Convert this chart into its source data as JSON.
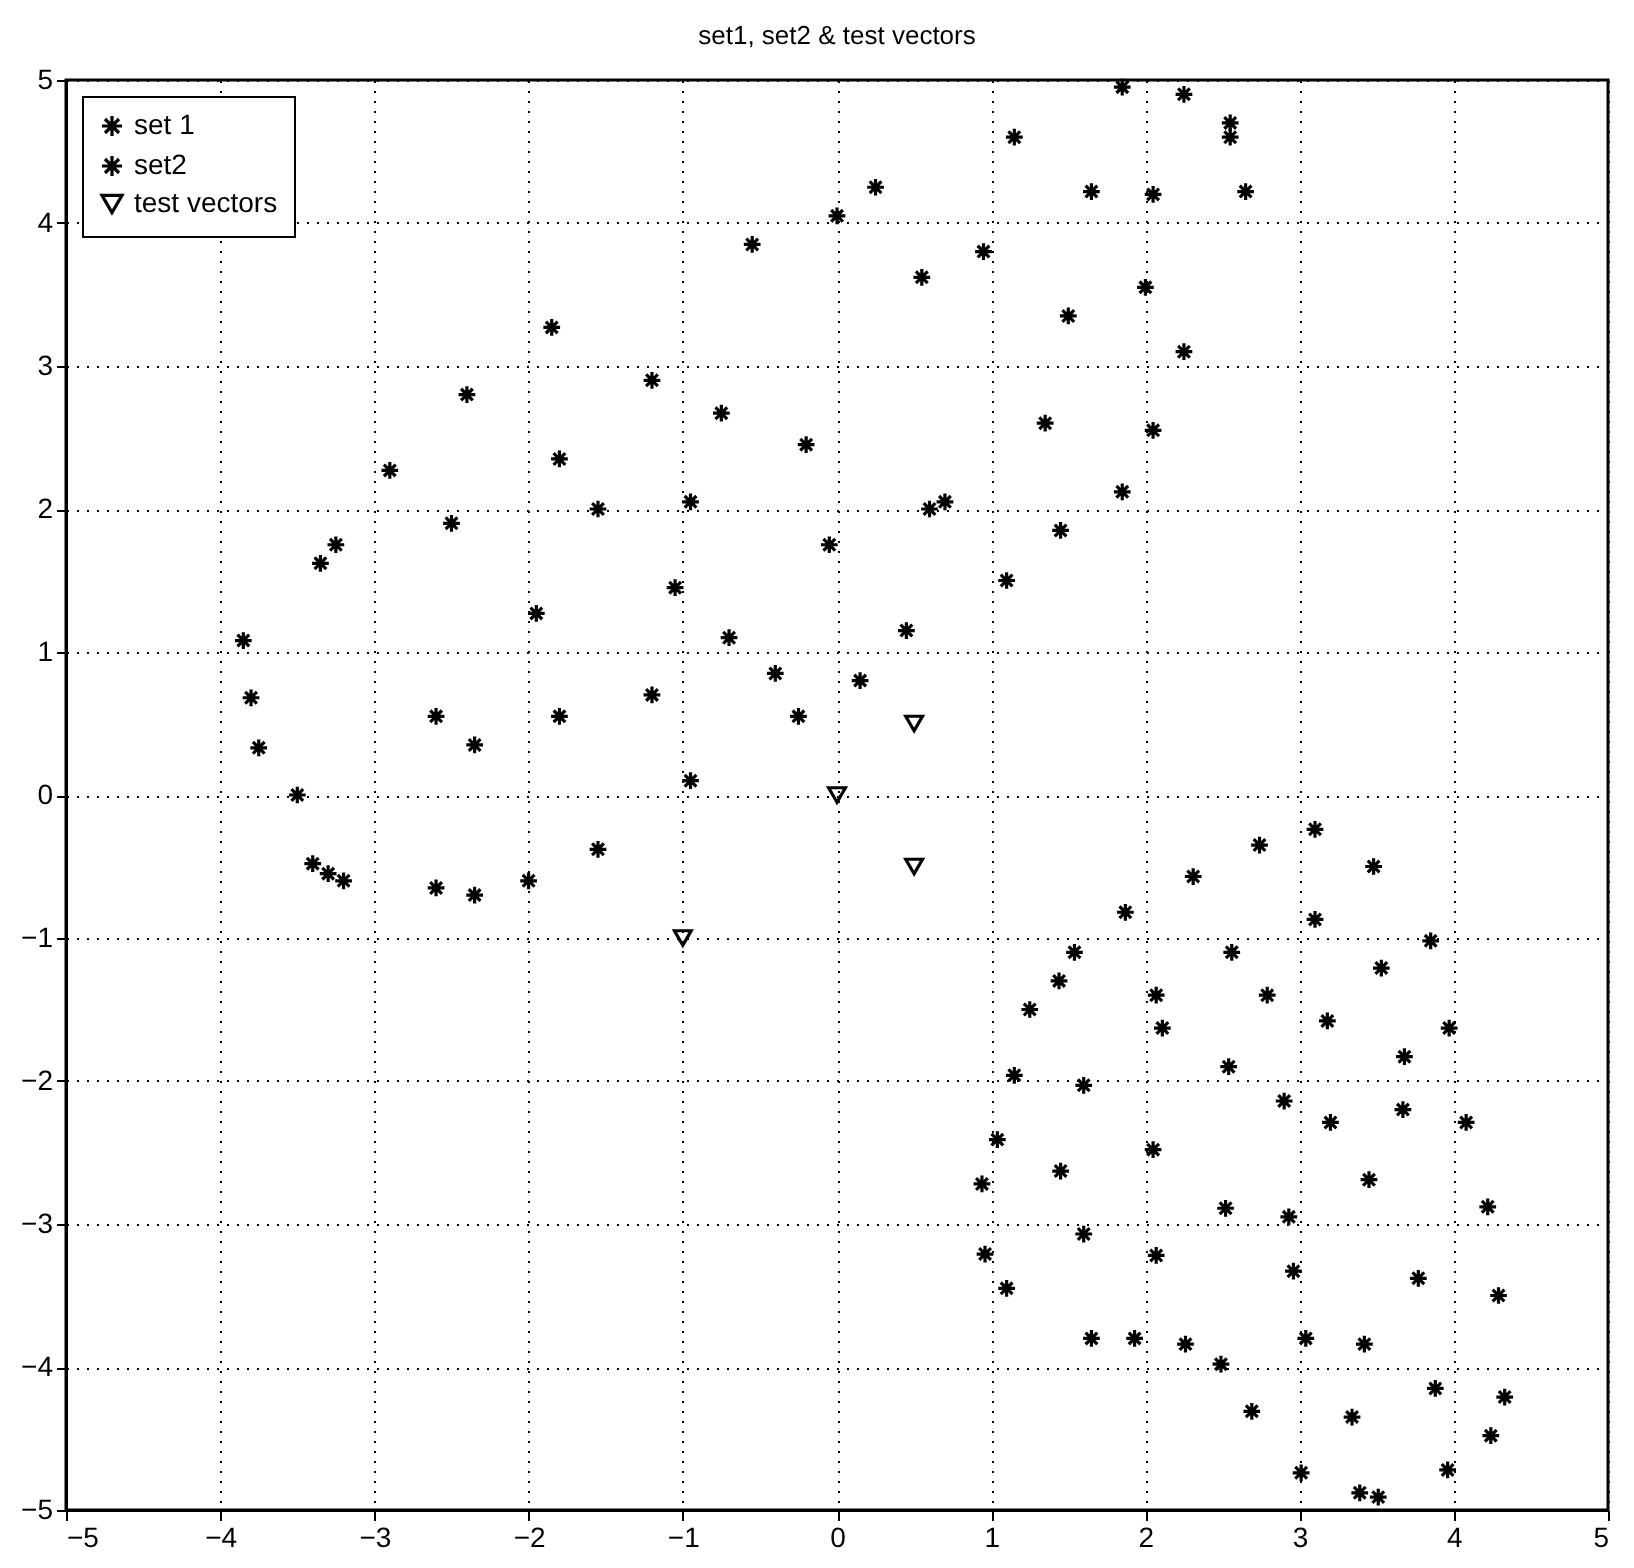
{
  "chart_data": {
    "type": "scatter",
    "title": "set1, set2 & test vectors",
    "xlim": [
      -5,
      5
    ],
    "ylim": [
      -5,
      5
    ],
    "xticks": [
      -5,
      -4,
      -3,
      -2,
      -1,
      0,
      1,
      2,
      3,
      4,
      5
    ],
    "yticks": [
      -5,
      -4,
      -3,
      -2,
      -1,
      0,
      1,
      2,
      3,
      4,
      5
    ],
    "grid": true,
    "legend": "top left",
    "series": [
      {
        "name": "set 1",
        "color": "#000000",
        "marker": "cross",
        "x": [
          -3.85,
          -3.8,
          -3.75,
          -3.5,
          -3.4,
          -3.3,
          -3.2,
          -3.35,
          -3.25,
          -2.9,
          -2.6,
          -2.35,
          -2.0,
          -1.55,
          -0.95,
          -2.6,
          -2.5,
          -2.4,
          -2.35,
          -1.85,
          -1.8,
          -1.8,
          -1.95,
          -1.55,
          -1.2,
          -1.2,
          -1.05,
          -0.95,
          -0.75,
          -0.7,
          -0.55,
          -0.4,
          -0.25,
          -0.2,
          -0.05,
          0.0,
          0.15,
          0.25,
          0.45,
          0.55,
          0.6,
          0.7,
          0.95,
          1.1,
          1.15,
          1.35,
          1.45,
          1.5,
          1.65,
          1.85,
          1.85,
          2.0,
          2.05,
          2.05,
          2.25,
          2.25,
          2.55,
          2.55,
          2.65
        ],
        "values": [
          1.08,
          0.68,
          0.33,
          0.0,
          -0.48,
          -0.55,
          -0.6,
          1.62,
          1.75,
          2.27,
          -0.65,
          -0.7,
          -0.6,
          -0.38,
          0.1,
          0.55,
          1.9,
          2.8,
          0.35,
          3.27,
          2.35,
          0.55,
          1.27,
          2.0,
          2.9,
          0.7,
          1.45,
          2.05,
          2.67,
          1.1,
          3.85,
          0.85,
          0.55,
          2.45,
          1.75,
          4.05,
          0.8,
          4.25,
          1.15,
          3.62,
          2.0,
          2.05,
          3.8,
          1.5,
          4.6,
          2.6,
          1.85,
          3.35,
          4.22,
          4.95,
          2.12,
          3.55,
          4.2,
          2.55,
          3.1,
          4.9,
          4.7,
          4.6,
          4.22
        ]
      },
      {
        "name": "set2",
        "color": "#000000",
        "marker": "cross",
        "x": [
          3.1,
          2.74,
          3.48,
          2.31,
          1.87,
          3.1,
          3.85,
          1.54,
          2.56,
          3.53,
          1.44,
          2.07,
          2.79,
          1.25,
          2.11,
          3.18,
          3.97,
          3.68,
          1.15,
          1.6,
          2.54,
          2.9,
          3.2,
          3.67,
          4.08,
          1.04,
          2.05,
          1.45,
          0.94,
          3.45,
          2.52,
          2.93,
          4.22,
          1.6,
          0.96,
          1.1,
          2.07,
          2.96,
          3.77,
          4.29,
          1.65,
          1.93,
          2.26,
          2.49,
          3.04,
          3.42,
          3.88,
          4.33,
          2.69,
          3.34,
          4.24,
          3.01,
          3.96,
          3.39,
          3.51
        ],
        "values": [
          -0.24,
          -0.35,
          -0.5,
          -0.57,
          -0.82,
          -0.87,
          -1.02,
          -1.1,
          -1.1,
          -1.21,
          -1.3,
          -1.4,
          -1.4,
          -1.5,
          -1.63,
          -1.58,
          -1.63,
          -1.83,
          -1.96,
          -2.03,
          -1.9,
          -2.14,
          -2.29,
          -2.2,
          -2.29,
          -2.41,
          -2.48,
          -2.63,
          -2.72,
          -2.69,
          -2.89,
          -2.95,
          -2.88,
          -3.07,
          -3.21,
          -3.45,
          -3.22,
          -3.33,
          -3.38,
          -3.5,
          -3.8,
          -3.8,
          -3.84,
          -3.98,
          -3.8,
          -3.84,
          -4.15,
          -4.21,
          -4.31,
          -4.35,
          -4.48,
          -4.74,
          -4.72,
          -4.88,
          -4.91
        ]
      },
      {
        "name": "test vectors",
        "color": "#000000",
        "marker": "triangle",
        "x": [
          -1,
          0,
          0.5,
          0.5
        ],
        "values": [
          -1,
          0,
          0.5,
          -0.5
        ]
      }
    ]
  }
}
